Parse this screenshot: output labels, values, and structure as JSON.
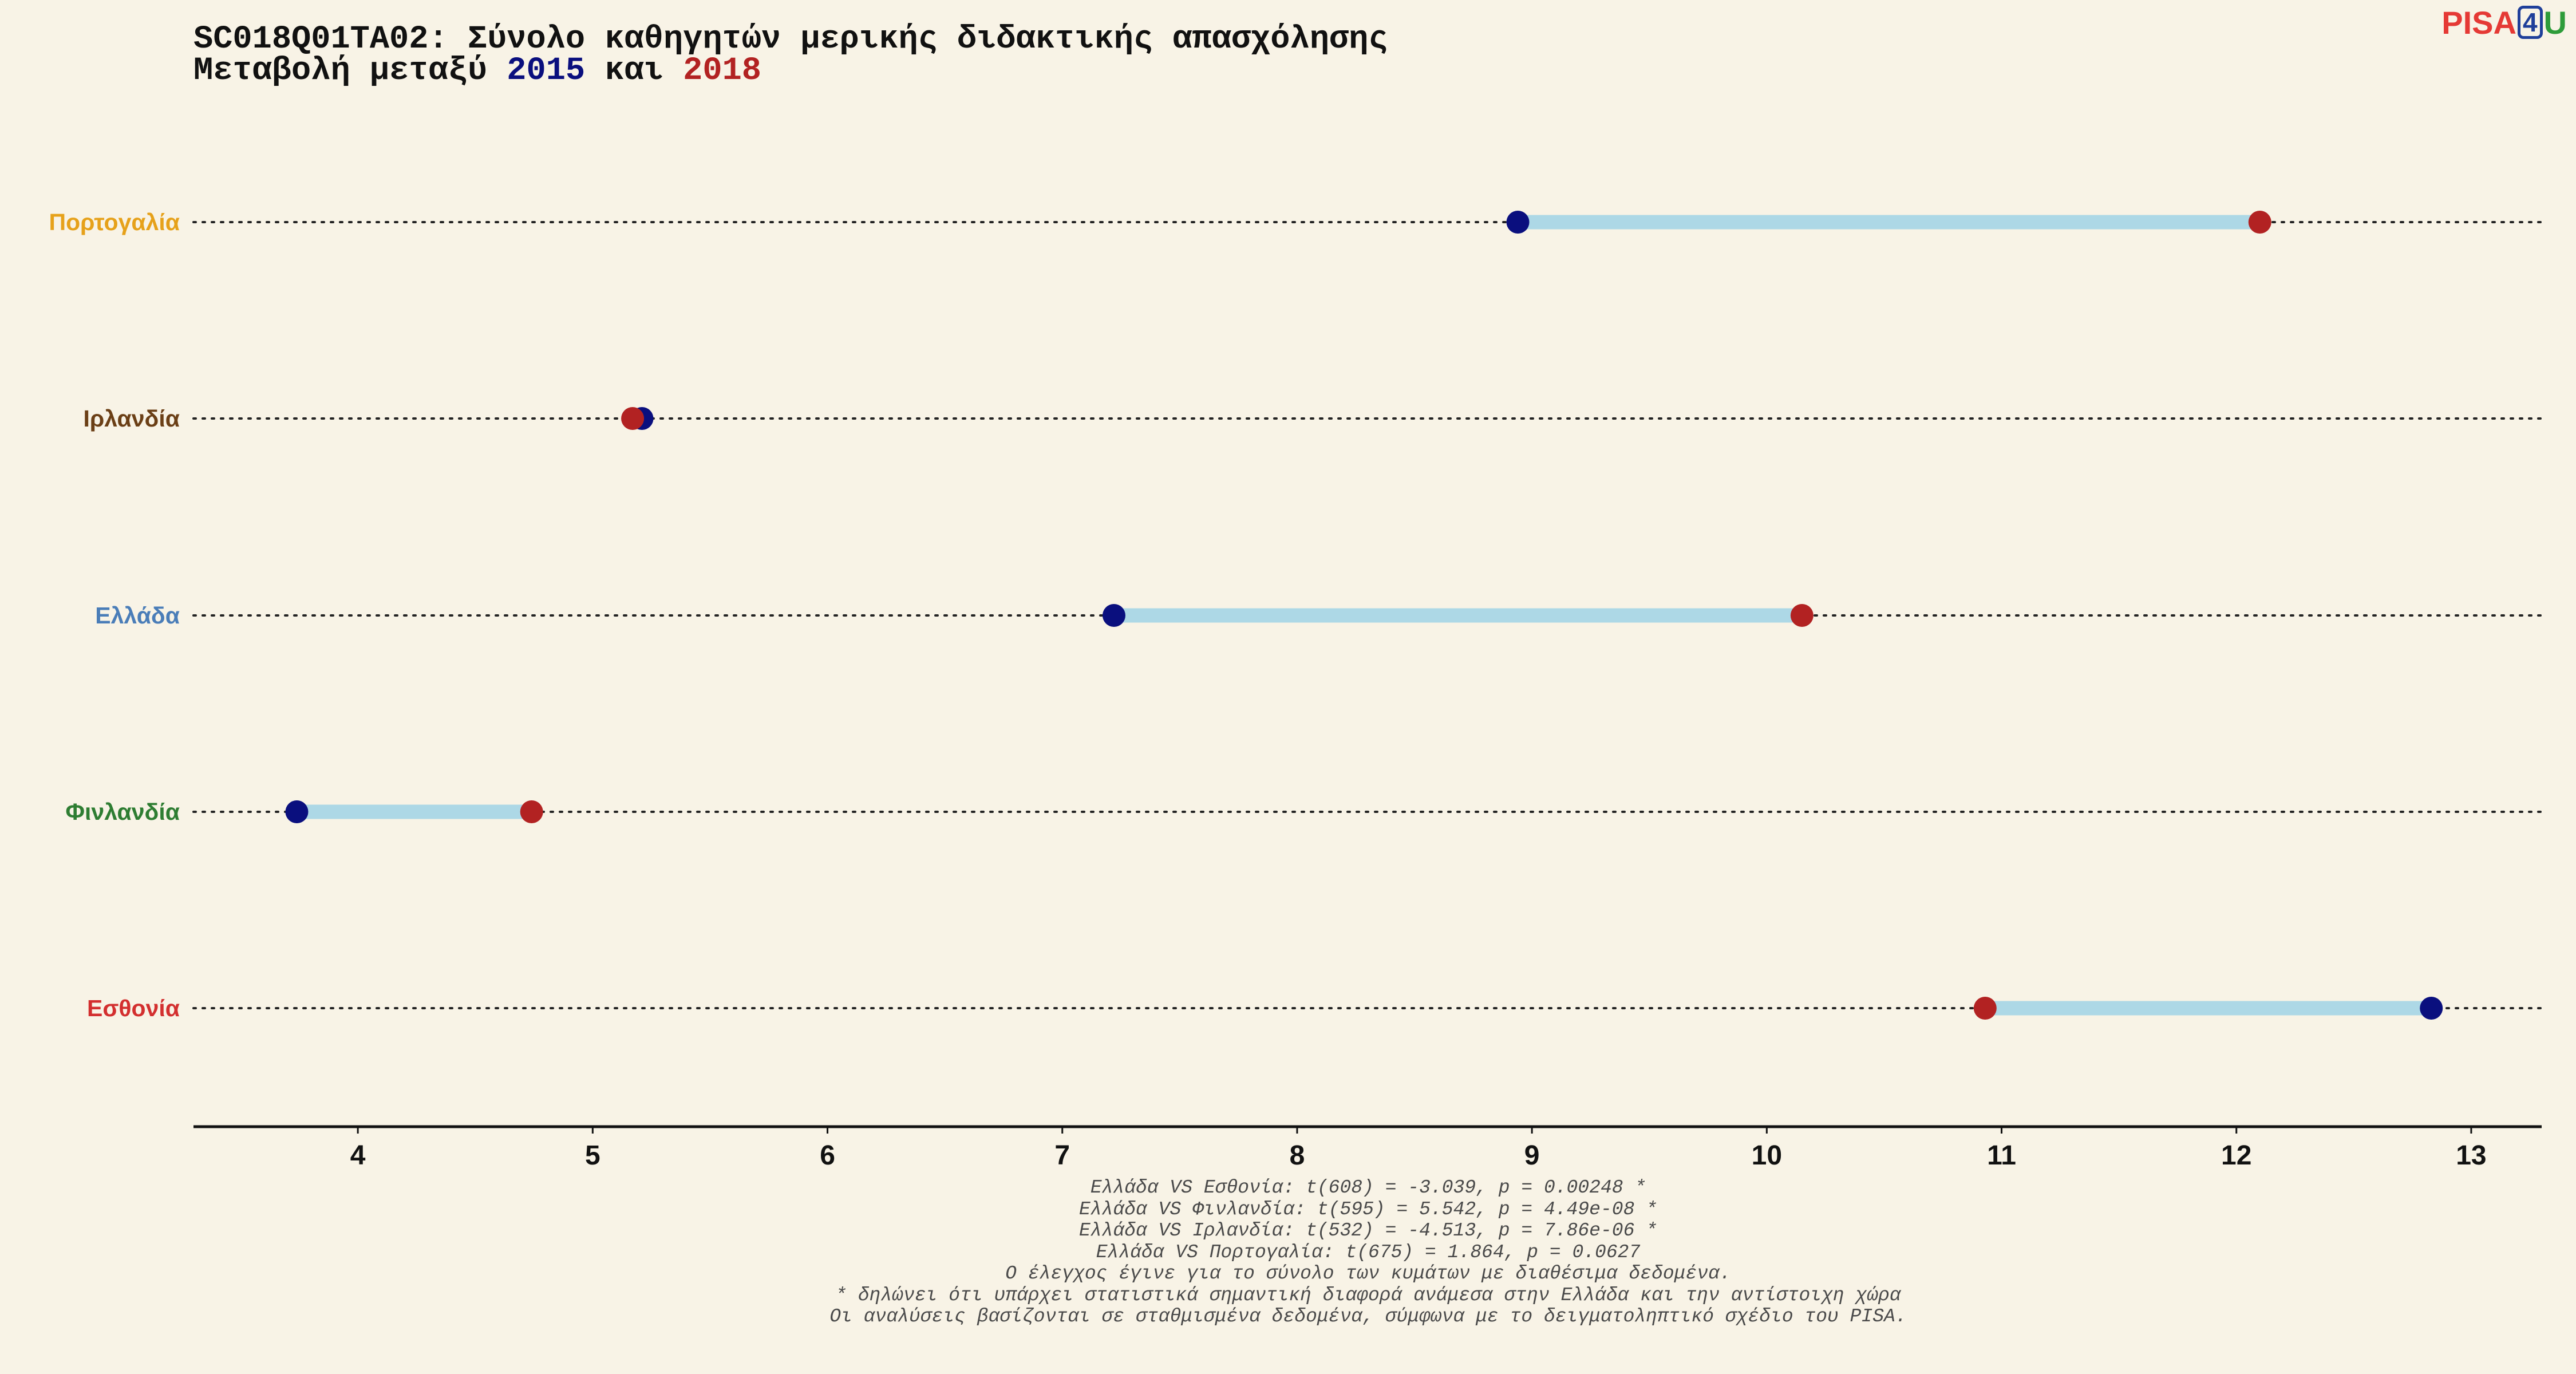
{
  "title": {
    "line1": "SC018Q01TA02: Σύνολο καθηγητών μερικής διδακτικής απασχόλησης",
    "line2_prefix": "Μεταβολή μεταξύ ",
    "year1": "2015",
    "line2_middle": " και ",
    "year2": "2018"
  },
  "logo": {
    "part1": "PISA",
    "part2": "4",
    "part3": "U"
  },
  "colors": {
    "year1": "#0a0f7e",
    "year2": "#b22222",
    "segment": "#add8e6",
    "background": "#f8f3e6"
  },
  "chart_data": {
    "type": "dumbbell",
    "xlim": [
      3.3,
      13.3
    ],
    "x_ticks": [
      4,
      5,
      6,
      7,
      8,
      9,
      10,
      11,
      12,
      13
    ],
    "series_names": [
      "2015",
      "2018"
    ],
    "rows": [
      {
        "country": "Πορτογαλία",
        "color": "#e6a11a",
        "value_2015": 8.94,
        "value_2018": 12.1
      },
      {
        "country": "Ιρλανδία",
        "color": "#6b3f16",
        "value_2015": 5.21,
        "value_2018": 5.17
      },
      {
        "country": "Ελλάδα",
        "color": "#4a7db8",
        "value_2015": 7.22,
        "value_2018": 10.15
      },
      {
        "country": "Φινλανδία",
        "color": "#2e7d32",
        "value_2015": 3.74,
        "value_2018": 4.74
      },
      {
        "country": "Εσθονία",
        "color": "#d32f2f",
        "value_2015": 12.83,
        "value_2018": 10.93
      }
    ]
  },
  "footnotes": [
    "Ελλάδα VS Εσθονία: t(608) = -3.039, p = 0.00248 *",
    "Ελλάδα VS Φινλανδία: t(595) = 5.542, p = 4.49e-08 *",
    "Ελλάδα VS Ιρλανδία: t(532) = -4.513, p = 7.86e-06 *",
    "Ελλάδα VS Πορτογαλία: t(675) = 1.864, p = 0.0627",
    "Ο έλεγχος έγινε για το σύνολο των κυμάτων με διαθέσιμα δεδομένα.",
    "* δηλώνει ότι υπάρχει στατιστικά σημαντική διαφορά ανάμεσα στην Ελλάδα και την αντίστοιχη χώρα",
    "Οι αναλύσεις βασίζονται σε σταθμισμένα δεδομένα, σύμφωνα με το δειγματοληπτικό σχέδιο του PISA."
  ]
}
